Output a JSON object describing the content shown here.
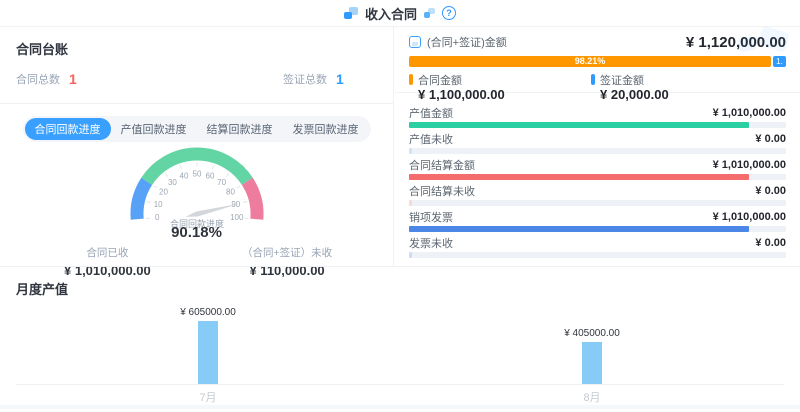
{
  "header": {
    "title": "收入合同",
    "help_label": "?"
  },
  "ledger": {
    "title": "合同台账",
    "stats": [
      {
        "label": "合同总数",
        "value": "1",
        "color": "#f5615c"
      },
      {
        "label": "签证总数",
        "value": "1",
        "color": "#2f9bff"
      }
    ]
  },
  "tabs": [
    {
      "label": "合同回款进度",
      "active": true
    },
    {
      "label": "产值回款进度",
      "active": false
    },
    {
      "label": "结算回款进度",
      "active": false
    },
    {
      "label": "发票回款进度",
      "active": false
    }
  ],
  "gauge_stats": [
    {
      "label": "合同已收",
      "value": "¥ 1,010,000.00"
    },
    {
      "label": "（合同+签证）未收",
      "value": "¥ 110,000.00"
    }
  ],
  "summary": {
    "label": "(合同+签证)金额",
    "value": "¥ 1,120,000.00",
    "bar": {
      "filled_label": "98.21%",
      "filled_pct": 98.21,
      "rest_label": "1.",
      "filled_color": "#ff9800",
      "rest_color": "#2f9bff"
    },
    "legend": [
      {
        "label": "合同金额",
        "value": "¥ 1,100,000.00",
        "color": "#ff9800"
      },
      {
        "label": "签证金额",
        "value": "¥ 20,000.00",
        "color": "#2f9bff"
      }
    ]
  },
  "metrics": [
    {
      "label": "产值金额",
      "value": "¥ 1,010,000.00",
      "pct": 90.2,
      "color": "#2bd0a2"
    },
    {
      "label": "产值未收",
      "value": "¥ 0.00",
      "pct": 0.7,
      "color": "#cfe4fb"
    },
    {
      "label": "合同结算金额",
      "value": "¥ 1,010,000.00",
      "pct": 90.2,
      "color": "#f56c6c"
    },
    {
      "label": "合同结算未收",
      "value": "¥ 0.00",
      "pct": 0.7,
      "color": "#fad9dc"
    },
    {
      "label": "销项发票",
      "value": "¥ 1,010,000.00",
      "pct": 90.2,
      "color": "#4c87e8"
    },
    {
      "label": "发票未收",
      "value": "¥ 0.00",
      "pct": 0.7,
      "color": "#cfdcf7"
    }
  ],
  "monthly": {
    "title": "月度产值"
  },
  "chart_data": [
    {
      "type": "gauge",
      "title": "合同回款进度",
      "value": 90.18,
      "value_label": "90.18%",
      "min": 0,
      "max": 100,
      "tick_step": 10,
      "start_angle": 185,
      "end_angle": -5,
      "segments": [
        {
          "from": 0,
          "to": 20,
          "color": "#57a1f6"
        },
        {
          "from": 20,
          "to": 80,
          "color": "#63d5a4"
        },
        {
          "from": 80,
          "to": 100,
          "color": "#ee7c9e"
        }
      ]
    },
    {
      "type": "bar",
      "title": "月度产值",
      "categories": [
        "7月",
        "8月"
      ],
      "values": [
        605000,
        405000
      ],
      "value_labels": [
        "¥ 605000.00",
        "¥ 405000.00"
      ],
      "bar_color": "#87ccf7",
      "ylim": [
        0,
        650000
      ],
      "xlabel": "",
      "ylabel": ""
    }
  ]
}
